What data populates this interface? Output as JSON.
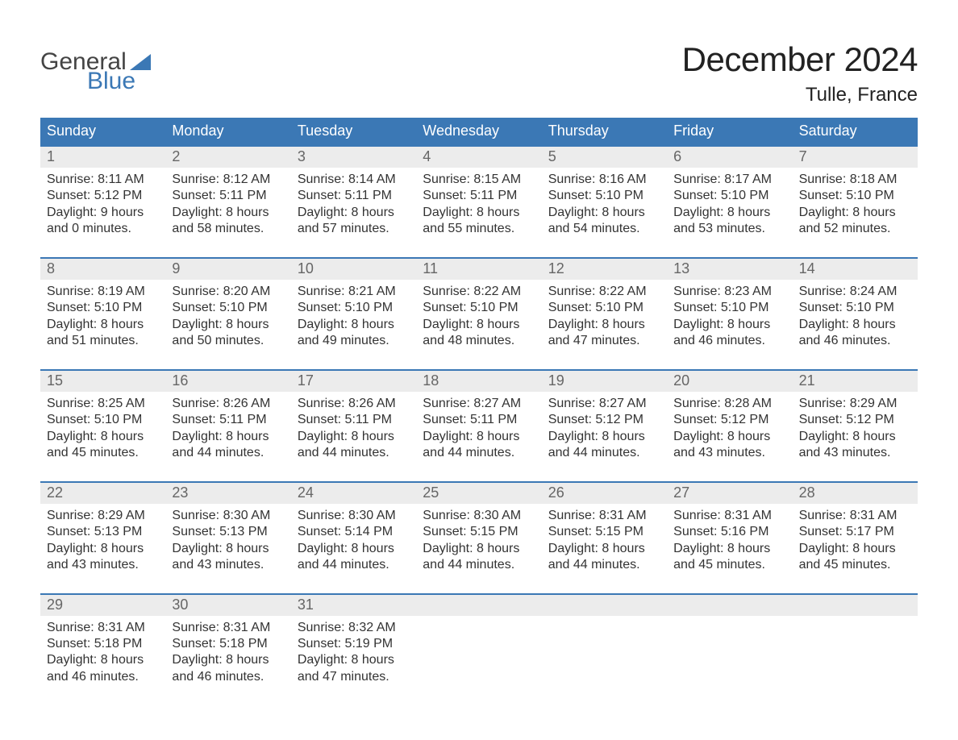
{
  "logo": {
    "text1": "General",
    "text2": "Blue",
    "triangle_color": "#3b78b5"
  },
  "header": {
    "month_title": "December 2024",
    "location": "Tulle, France"
  },
  "colors": {
    "header_bg": "#3b78b5",
    "header_text": "#ffffff",
    "daynum_bg": "#ececec",
    "daynum_text": "#666666",
    "body_text": "#333333",
    "week_border": "#3b78b5",
    "page_bg": "#ffffff"
  },
  "weekdays": [
    "Sunday",
    "Monday",
    "Tuesday",
    "Wednesday",
    "Thursday",
    "Friday",
    "Saturday"
  ],
  "weeks": [
    [
      {
        "day": "1",
        "sunrise": "Sunrise: 8:11 AM",
        "sunset": "Sunset: 5:12 PM",
        "d1": "Daylight: 9 hours",
        "d2": "and 0 minutes."
      },
      {
        "day": "2",
        "sunrise": "Sunrise: 8:12 AM",
        "sunset": "Sunset: 5:11 PM",
        "d1": "Daylight: 8 hours",
        "d2": "and 58 minutes."
      },
      {
        "day": "3",
        "sunrise": "Sunrise: 8:14 AM",
        "sunset": "Sunset: 5:11 PM",
        "d1": "Daylight: 8 hours",
        "d2": "and 57 minutes."
      },
      {
        "day": "4",
        "sunrise": "Sunrise: 8:15 AM",
        "sunset": "Sunset: 5:11 PM",
        "d1": "Daylight: 8 hours",
        "d2": "and 55 minutes."
      },
      {
        "day": "5",
        "sunrise": "Sunrise: 8:16 AM",
        "sunset": "Sunset: 5:10 PM",
        "d1": "Daylight: 8 hours",
        "d2": "and 54 minutes."
      },
      {
        "day": "6",
        "sunrise": "Sunrise: 8:17 AM",
        "sunset": "Sunset: 5:10 PM",
        "d1": "Daylight: 8 hours",
        "d2": "and 53 minutes."
      },
      {
        "day": "7",
        "sunrise": "Sunrise: 8:18 AM",
        "sunset": "Sunset: 5:10 PM",
        "d1": "Daylight: 8 hours",
        "d2": "and 52 minutes."
      }
    ],
    [
      {
        "day": "8",
        "sunrise": "Sunrise: 8:19 AM",
        "sunset": "Sunset: 5:10 PM",
        "d1": "Daylight: 8 hours",
        "d2": "and 51 minutes."
      },
      {
        "day": "9",
        "sunrise": "Sunrise: 8:20 AM",
        "sunset": "Sunset: 5:10 PM",
        "d1": "Daylight: 8 hours",
        "d2": "and 50 minutes."
      },
      {
        "day": "10",
        "sunrise": "Sunrise: 8:21 AM",
        "sunset": "Sunset: 5:10 PM",
        "d1": "Daylight: 8 hours",
        "d2": "and 49 minutes."
      },
      {
        "day": "11",
        "sunrise": "Sunrise: 8:22 AM",
        "sunset": "Sunset: 5:10 PM",
        "d1": "Daylight: 8 hours",
        "d2": "and 48 minutes."
      },
      {
        "day": "12",
        "sunrise": "Sunrise: 8:22 AM",
        "sunset": "Sunset: 5:10 PM",
        "d1": "Daylight: 8 hours",
        "d2": "and 47 minutes."
      },
      {
        "day": "13",
        "sunrise": "Sunrise: 8:23 AM",
        "sunset": "Sunset: 5:10 PM",
        "d1": "Daylight: 8 hours",
        "d2": "and 46 minutes."
      },
      {
        "day": "14",
        "sunrise": "Sunrise: 8:24 AM",
        "sunset": "Sunset: 5:10 PM",
        "d1": "Daylight: 8 hours",
        "d2": "and 46 minutes."
      }
    ],
    [
      {
        "day": "15",
        "sunrise": "Sunrise: 8:25 AM",
        "sunset": "Sunset: 5:10 PM",
        "d1": "Daylight: 8 hours",
        "d2": "and 45 minutes."
      },
      {
        "day": "16",
        "sunrise": "Sunrise: 8:26 AM",
        "sunset": "Sunset: 5:11 PM",
        "d1": "Daylight: 8 hours",
        "d2": "and 44 minutes."
      },
      {
        "day": "17",
        "sunrise": "Sunrise: 8:26 AM",
        "sunset": "Sunset: 5:11 PM",
        "d1": "Daylight: 8 hours",
        "d2": "and 44 minutes."
      },
      {
        "day": "18",
        "sunrise": "Sunrise: 8:27 AM",
        "sunset": "Sunset: 5:11 PM",
        "d1": "Daylight: 8 hours",
        "d2": "and 44 minutes."
      },
      {
        "day": "19",
        "sunrise": "Sunrise: 8:27 AM",
        "sunset": "Sunset: 5:12 PM",
        "d1": "Daylight: 8 hours",
        "d2": "and 44 minutes."
      },
      {
        "day": "20",
        "sunrise": "Sunrise: 8:28 AM",
        "sunset": "Sunset: 5:12 PM",
        "d1": "Daylight: 8 hours",
        "d2": "and 43 minutes."
      },
      {
        "day": "21",
        "sunrise": "Sunrise: 8:29 AM",
        "sunset": "Sunset: 5:12 PM",
        "d1": "Daylight: 8 hours",
        "d2": "and 43 minutes."
      }
    ],
    [
      {
        "day": "22",
        "sunrise": "Sunrise: 8:29 AM",
        "sunset": "Sunset: 5:13 PM",
        "d1": "Daylight: 8 hours",
        "d2": "and 43 minutes."
      },
      {
        "day": "23",
        "sunrise": "Sunrise: 8:30 AM",
        "sunset": "Sunset: 5:13 PM",
        "d1": "Daylight: 8 hours",
        "d2": "and 43 minutes."
      },
      {
        "day": "24",
        "sunrise": "Sunrise: 8:30 AM",
        "sunset": "Sunset: 5:14 PM",
        "d1": "Daylight: 8 hours",
        "d2": "and 44 minutes."
      },
      {
        "day": "25",
        "sunrise": "Sunrise: 8:30 AM",
        "sunset": "Sunset: 5:15 PM",
        "d1": "Daylight: 8 hours",
        "d2": "and 44 minutes."
      },
      {
        "day": "26",
        "sunrise": "Sunrise: 8:31 AM",
        "sunset": "Sunset: 5:15 PM",
        "d1": "Daylight: 8 hours",
        "d2": "and 44 minutes."
      },
      {
        "day": "27",
        "sunrise": "Sunrise: 8:31 AM",
        "sunset": "Sunset: 5:16 PM",
        "d1": "Daylight: 8 hours",
        "d2": "and 45 minutes."
      },
      {
        "day": "28",
        "sunrise": "Sunrise: 8:31 AM",
        "sunset": "Sunset: 5:17 PM",
        "d1": "Daylight: 8 hours",
        "d2": "and 45 minutes."
      }
    ],
    [
      {
        "day": "29",
        "sunrise": "Sunrise: 8:31 AM",
        "sunset": "Sunset: 5:18 PM",
        "d1": "Daylight: 8 hours",
        "d2": "and 46 minutes."
      },
      {
        "day": "30",
        "sunrise": "Sunrise: 8:31 AM",
        "sunset": "Sunset: 5:18 PM",
        "d1": "Daylight: 8 hours",
        "d2": "and 46 minutes."
      },
      {
        "day": "31",
        "sunrise": "Sunrise: 8:32 AM",
        "sunset": "Sunset: 5:19 PM",
        "d1": "Daylight: 8 hours",
        "d2": "and 47 minutes."
      },
      null,
      null,
      null,
      null
    ]
  ]
}
